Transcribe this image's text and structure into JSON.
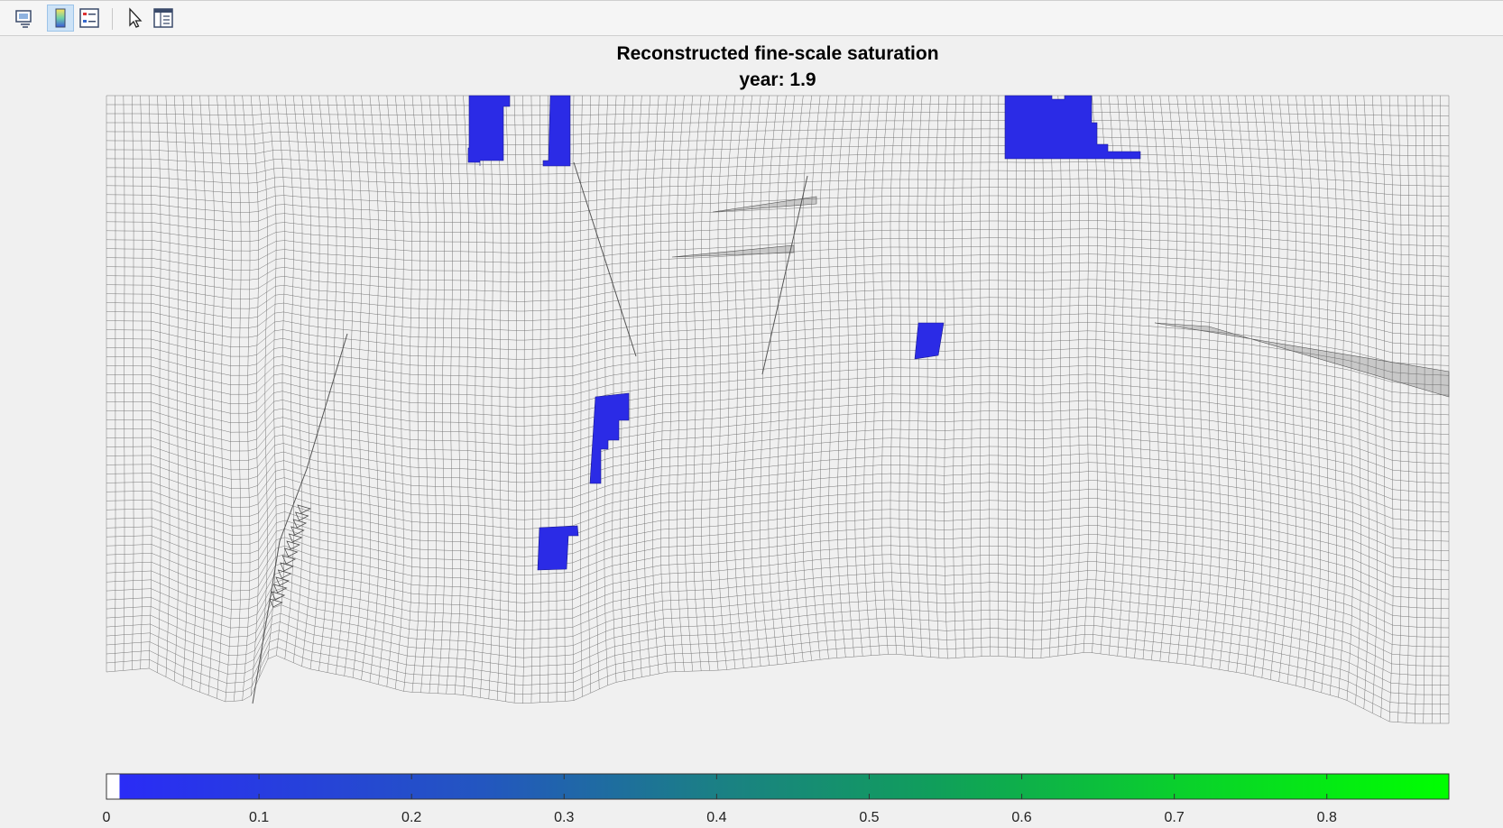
{
  "toolbar": {
    "buttons": [
      {
        "name": "link-plot-icon",
        "active": false
      },
      {
        "name": "colorbar-icon",
        "active": true
      },
      {
        "name": "legend-icon",
        "active": false
      },
      {
        "name": "pointer-icon",
        "active": false
      },
      {
        "name": "property-inspector-icon",
        "active": false
      }
    ]
  },
  "figure": {
    "title": "Reconstructed fine-scale saturation",
    "subtitle": "year: 1.9"
  },
  "chart_data": {
    "type": "heatmap",
    "title": "Reconstructed fine-scale saturation",
    "subtitle": "year: 1.9",
    "colorbar": {
      "ticks": [
        0,
        0.1,
        0.2,
        0.3,
        0.4,
        0.5,
        0.6,
        0.7,
        0.8
      ],
      "tick_labels": [
        "0",
        "0.1",
        "0.2",
        "0.3",
        "0.4",
        "0.5",
        "0.6",
        "0.7",
        "0.8"
      ],
      "range": [
        0,
        0.88
      ],
      "colormap": [
        "#ffffff",
        "#2a2af2",
        "#1f6a9c",
        "#12a055",
        "#00ff00"
      ]
    },
    "saturated_color": "#2b2be6",
    "grid_color": "#6a6a6a"
  }
}
